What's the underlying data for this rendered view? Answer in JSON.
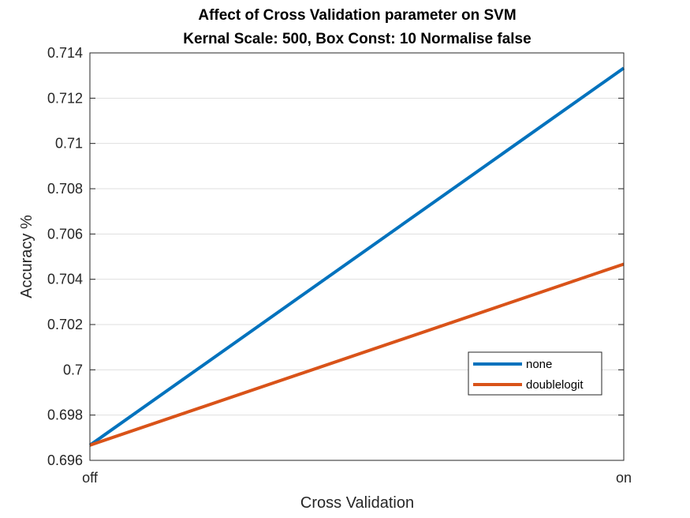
{
  "chart_data": {
    "type": "line",
    "title": "Affect of Cross Validation parameter on SVM",
    "subtitle": "Kernal Scale: 500, Box Const: 10 Normalise false",
    "xlabel": "Cross Validation",
    "ylabel": "Accuracy %",
    "categories": [
      "off",
      "on"
    ],
    "ylim": [
      0.696,
      0.714
    ],
    "yticks": [
      0.696,
      0.698,
      0.7,
      0.702,
      0.704,
      0.706,
      0.708,
      0.71,
      0.712,
      0.714
    ],
    "ytick_labels": [
      "0.696",
      "0.698",
      "0.7",
      "0.702",
      "0.704",
      "0.706",
      "0.708",
      "0.71",
      "0.712",
      "0.714"
    ],
    "grid": true,
    "legend_position": "inside-right",
    "series": [
      {
        "name": "none",
        "values": [
          0.69667,
          0.71333
        ],
        "color": "#0072BD"
      },
      {
        "name": "doublelogit",
        "values": [
          0.69667,
          0.70467
        ],
        "color": "#D95319"
      }
    ]
  }
}
